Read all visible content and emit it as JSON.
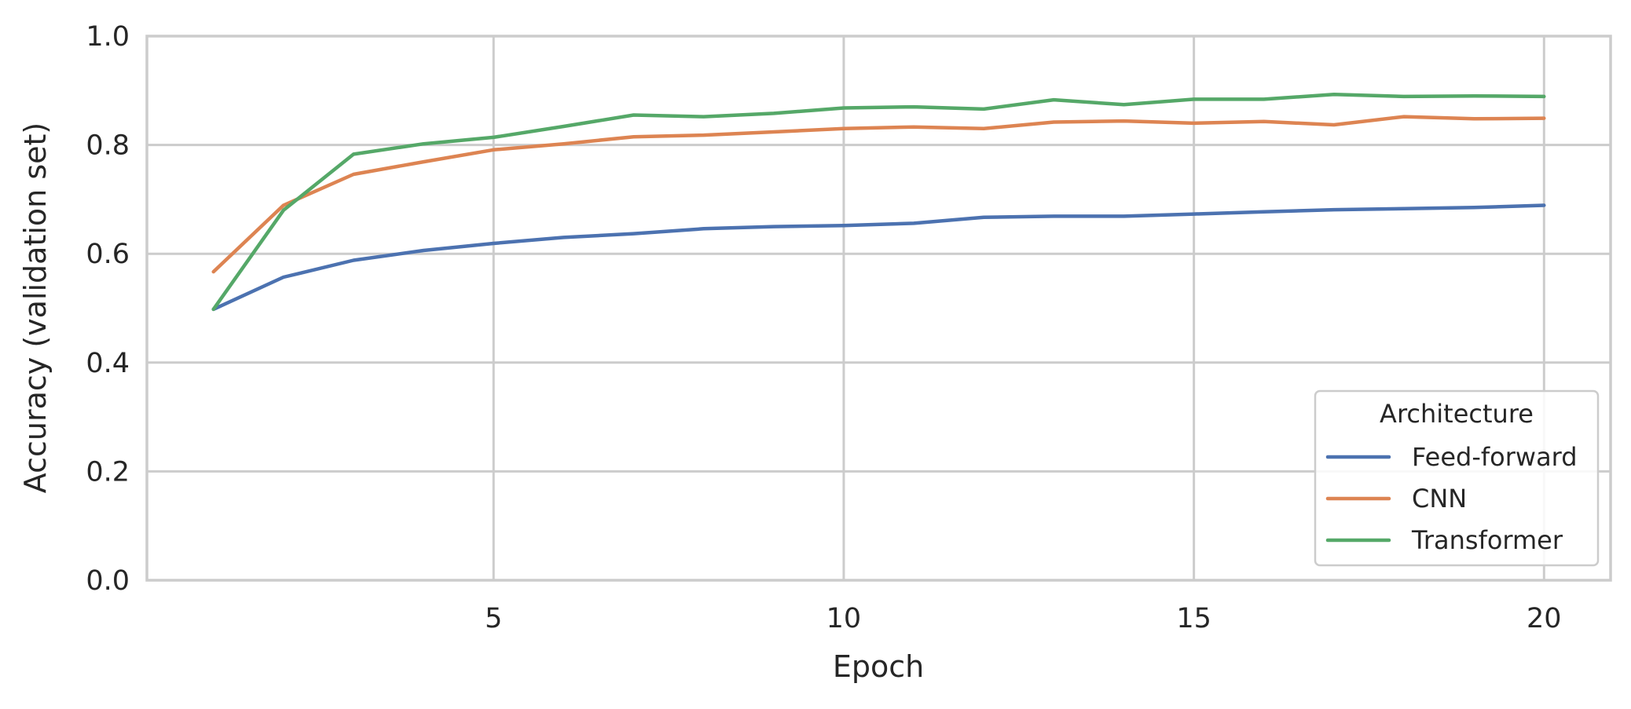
{
  "chart_data": {
    "type": "line",
    "title": "",
    "xlabel": "Epoch",
    "ylabel": "Accuracy (validation set)",
    "xlim": [
      0.05,
      20.95
    ],
    "ylim": [
      0.0,
      1.0
    ],
    "x_ticks": [
      5,
      10,
      15,
      20
    ],
    "x_tick_labels": [
      "5",
      "10",
      "15",
      "20"
    ],
    "y_ticks": [
      0.0,
      0.2,
      0.4,
      0.6,
      0.8,
      1.0
    ],
    "y_tick_labels": [
      "0.0",
      "0.2",
      "0.4",
      "0.6",
      "0.8",
      "1.0"
    ],
    "grid": true,
    "legend": {
      "title": "Architecture",
      "position": "lower-right"
    },
    "x": [
      1,
      2,
      3,
      4,
      5,
      6,
      7,
      8,
      9,
      10,
      11,
      12,
      13,
      14,
      15,
      16,
      17,
      18,
      19,
      20
    ],
    "series": [
      {
        "name": "Feed-forward",
        "color": "#4c72b0",
        "values": [
          0.498,
          0.557,
          0.588,
          0.606,
          0.619,
          0.63,
          0.637,
          0.646,
          0.65,
          0.652,
          0.656,
          0.667,
          0.669,
          0.669,
          0.673,
          0.677,
          0.681,
          0.683,
          0.685,
          0.689
        ]
      },
      {
        "name": "CNN",
        "color": "#dd8452",
        "values": [
          0.567,
          0.689,
          0.746,
          0.769,
          0.791,
          0.802,
          0.815,
          0.818,
          0.824,
          0.83,
          0.833,
          0.83,
          0.842,
          0.844,
          0.84,
          0.843,
          0.837,
          0.852,
          0.848,
          0.849
        ]
      },
      {
        "name": "Transformer",
        "color": "#55a868",
        "values": [
          0.498,
          0.68,
          0.783,
          0.802,
          0.814,
          0.834,
          0.855,
          0.852,
          0.858,
          0.868,
          0.87,
          0.866,
          0.883,
          0.874,
          0.884,
          0.884,
          0.893,
          0.889,
          0.89,
          0.889
        ]
      }
    ]
  }
}
